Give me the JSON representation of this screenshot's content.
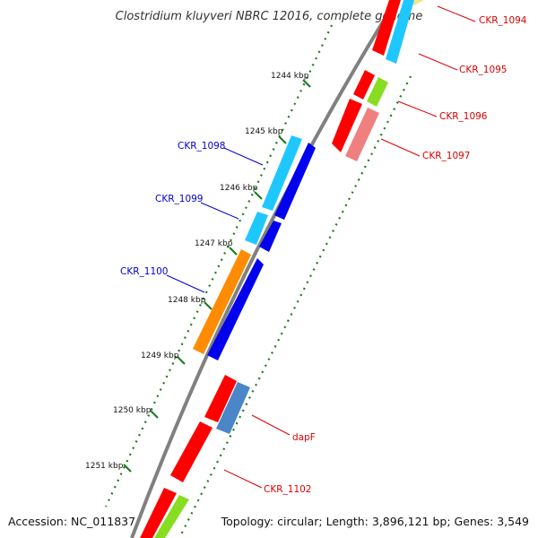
{
  "title": "Clostridium kluyveri NBRC 12016, complete genome",
  "accession": "Accession: NC_011837",
  "topology": "Topology: circular; Length: 3,896,121 bp; Genes: 3,549",
  "colors": {
    "backbone": "#808080",
    "tick": "#1a7a1a",
    "forward_label": "#0000cc",
    "reverse_label": "#dd0000",
    "red": "#ff0000",
    "cyan": "#1ec8ff",
    "blue": "#0000ee",
    "orange": "#ff8c00",
    "steel": "#4a86c8",
    "green": "#88dd22",
    "salmon": "#f08080",
    "khaki": "#f0e68c"
  },
  "ticks": [
    "1244 kbp",
    "1245 kbp",
    "1246 kbp",
    "1247 kbp",
    "1248 kbp",
    "1249 kbp",
    "1250 kbp",
    "1251 kbp"
  ],
  "genes_forward_labels": [
    "CKR_1098",
    "CKR_1099",
    "CKR_1100"
  ],
  "genes_reverse_labels": [
    "CKR_1094",
    "CKR_1095",
    "CKR_1096",
    "CKR_1097",
    "dapF",
    "CKR_1102"
  ]
}
